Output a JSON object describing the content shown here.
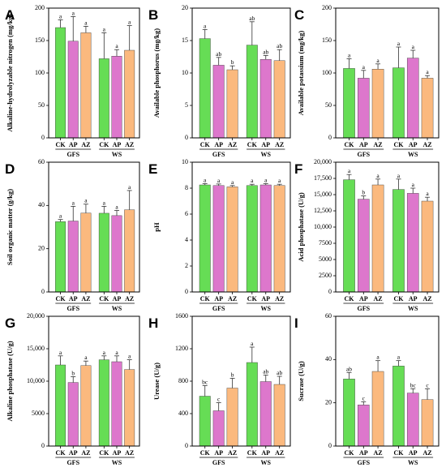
{
  "colors": {
    "CK": "#66dd55",
    "AP": "#dd77cc",
    "AZ": "#fbb97e"
  },
  "chart_data": [
    {
      "letter": "A",
      "type": "bar",
      "ylabel": "Alkaline-hydrolyzable nitrogen (mg/kg)",
      "ylim": [
        0,
        200
      ],
      "yticks": [
        "0",
        "50",
        "100",
        "150",
        "200"
      ],
      "categories": [
        "CK",
        "AP",
        "AZ",
        "CK",
        "AP",
        "AZ"
      ],
      "groups": [
        "GFS",
        "WS"
      ],
      "values": [
        170,
        149,
        162,
        122,
        126,
        135
      ],
      "errors": [
        12,
        38,
        10,
        40,
        10,
        38
      ],
      "labels": [
        "a",
        "a",
        "a",
        "a",
        "a",
        "a"
      ]
    },
    {
      "letter": "B",
      "type": "bar",
      "ylabel": "Available phosphorus (mg/kg)",
      "ylim": [
        0,
        20
      ],
      "yticks": [
        "0",
        "5",
        "10",
        "15",
        "20"
      ],
      "categories": [
        "CK",
        "AP",
        "AZ",
        "CK",
        "AP",
        "AZ"
      ],
      "groups": [
        "GFS",
        "WS"
      ],
      "values": [
        15.3,
        11.2,
        10.5,
        14.3,
        12.1,
        11.9
      ],
      "errors": [
        1.4,
        1.2,
        0.6,
        3.6,
        0.6,
        1.7
      ],
      "labels": [
        "a",
        "ab",
        "b",
        "ab",
        "ab",
        "ab"
      ]
    },
    {
      "letter": "C",
      "type": "bar",
      "ylabel": "Available potassium (mg/kg)",
      "ylim": [
        0,
        200
      ],
      "yticks": [
        "0",
        "50",
        "100",
        "150",
        "200"
      ],
      "categories": [
        "CK",
        "AP",
        "AZ",
        "CK",
        "AP",
        "AZ"
      ],
      "groups": [
        "GFS",
        "WS"
      ],
      "values": [
        107,
        92,
        106,
        108,
        123,
        92
      ],
      "errors": [
        15,
        12,
        8,
        32,
        12,
        4
      ],
      "labels": [
        "a",
        "a",
        "a",
        "a",
        "a",
        "a"
      ]
    },
    {
      "letter": "D",
      "type": "bar",
      "ylabel": "Soil organic matter (g/kg)",
      "ylim": [
        0,
        60
      ],
      "yticks": [
        "0",
        "20",
        "40",
        "60"
      ],
      "categories": [
        "CK",
        "AP",
        "AZ",
        "CK",
        "AP",
        "AZ"
      ],
      "groups": [
        "GFS",
        "WS"
      ],
      "values": [
        32.5,
        32.8,
        36.5,
        36.4,
        35.3,
        38.0
      ],
      "errors": [
        1.0,
        6.8,
        4.1,
        3.2,
        2.4,
        8.9
      ],
      "labels": [
        "a",
        "a",
        "a",
        "a",
        "a",
        "a"
      ]
    },
    {
      "letter": "E",
      "type": "bar",
      "ylabel": "pH",
      "ylim": [
        0,
        10
      ],
      "yticks": [
        "0",
        "2",
        "4",
        "6",
        "8",
        "10"
      ],
      "categories": [
        "CK",
        "AP",
        "AZ",
        "CK",
        "AP",
        "AZ"
      ],
      "groups": [
        "GFS",
        "WS"
      ],
      "values": [
        8.25,
        8.2,
        8.1,
        8.2,
        8.25,
        8.2
      ],
      "errors": [
        0.1,
        0.12,
        0.1,
        0.1,
        0.1,
        0.1
      ],
      "labels": [
        "a",
        "a",
        "a",
        "a",
        "a",
        "a"
      ]
    },
    {
      "letter": "F",
      "type": "bar",
      "ylabel": "Acid phosphatase (U/g)",
      "ylim": [
        0,
        20000
      ],
      "yticks": [
        "0",
        "2500",
        "5000",
        "7500",
        "10,000",
        "12,500",
        "15,000",
        "17,500",
        "20,000"
      ],
      "categories": [
        "CK",
        "AP",
        "AZ",
        "CK",
        "AP",
        "AZ"
      ],
      "groups": [
        "GFS",
        "WS"
      ],
      "values": [
        17300,
        14300,
        16500,
        15800,
        15200,
        14000
      ],
      "errors": [
        800,
        500,
        900,
        1600,
        800,
        600
      ],
      "labels": [
        "a",
        "b",
        "a",
        "a",
        "a",
        "a"
      ]
    },
    {
      "letter": "G",
      "type": "bar",
      "ylabel": "Alkaline phosphatase (U/g)",
      "ylim": [
        0,
        20000
      ],
      "yticks": [
        "0",
        "5000",
        "10,000",
        "15,000",
        "20,000"
      ],
      "categories": [
        "CK",
        "AP",
        "AZ",
        "CK",
        "AP",
        "AZ"
      ],
      "groups": [
        "GFS",
        "WS"
      ],
      "values": [
        12500,
        9800,
        12400,
        13300,
        13000,
        11800
      ],
      "errors": [
        1400,
        900,
        700,
        600,
        900,
        1500
      ],
      "labels": [
        "a",
        "b",
        "a",
        "a",
        "a",
        "a"
      ]
    },
    {
      "letter": "H",
      "type": "bar",
      "ylabel": "Urease (U/g)",
      "ylim": [
        0,
        1600
      ],
      "yticks": [
        "0",
        "400",
        "800",
        "1200",
        "1600"
      ],
      "categories": [
        "CK",
        "AP",
        "AZ",
        "CK",
        "AP",
        "AZ"
      ],
      "groups": [
        "GFS",
        "WS"
      ],
      "values": [
        615,
        435,
        715,
        1030,
        795,
        760
      ],
      "errors": [
        130,
        100,
        120,
        190,
        80,
        100
      ],
      "labels": [
        "bc",
        "c",
        "b",
        "a",
        "ab",
        "ab"
      ]
    },
    {
      "letter": "I",
      "type": "bar",
      "ylabel": "Sucrase (U/g)",
      "ylim": [
        0,
        60
      ],
      "yticks": [
        "0",
        "20",
        "40",
        "60"
      ],
      "categories": [
        "CK",
        "AP",
        "AZ",
        "CK",
        "AP",
        "AZ"
      ],
      "groups": [
        "GFS",
        "WS"
      ],
      "values": [
        31,
        19,
        34.5,
        37,
        24.5,
        21.5
      ],
      "errors": [
        3.0,
        1.5,
        5.0,
        2.5,
        2.0,
        5.0
      ],
      "labels": [
        "ab",
        "c",
        "a",
        "a",
        "bc",
        "c"
      ]
    }
  ]
}
